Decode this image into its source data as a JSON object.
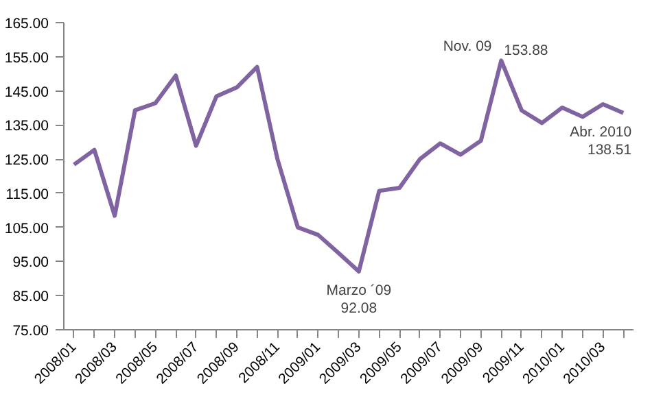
{
  "chart_data": {
    "type": "line",
    "categories": [
      "2008/01",
      null,
      "2008/03",
      null,
      "2008/05",
      null,
      "2008/07",
      null,
      "2008/09",
      null,
      "2008/11",
      null,
      "2009/01",
      null,
      "2009/03",
      null,
      "2009/05",
      null,
      "2009/07",
      null,
      "2009/09",
      null,
      "2009/11",
      null,
      "2010/01",
      null,
      "2010/03",
      null
    ],
    "series": [
      {
        "color": "#8064a2",
        "values": [
          123.4,
          127.7,
          108.4,
          139.3,
          141.4,
          149.5,
          128.9,
          143.4,
          146.0,
          152.0,
          125.0,
          105.0,
          102.8,
          97.5,
          92.08,
          115.7,
          116.6,
          125.0,
          129.6,
          126.3,
          130.4,
          153.88,
          139.3,
          135.6,
          140.1,
          137.4,
          141.1,
          138.51
        ],
        "value_labels": [
          null,
          null,
          null,
          null,
          null,
          null,
          null,
          null,
          null,
          null,
          null,
          null,
          null,
          null,
          "92.08",
          null,
          null,
          null,
          null,
          null,
          null,
          "153.88",
          null,
          null,
          null,
          null,
          null,
          "138.51"
        ]
      }
    ],
    "annotations": [
      "Marzo ´09",
      "Nov.  09",
      "Abr. 2010"
    ],
    "ylim": [
      75,
      165
    ],
    "yticks": [
      {
        "value": 75,
        "label": "75.00"
      },
      {
        "value": 85,
        "label": "85.00"
      },
      {
        "value": 95,
        "label": "95.00"
      },
      {
        "value": 105,
        "label": "105.00"
      },
      {
        "value": 115,
        "label": "115.00"
      },
      {
        "value": 125,
        "label": "125.00"
      },
      {
        "value": 135,
        "label": "135.00"
      },
      {
        "value": 145,
        "label": "145.00"
      },
      {
        "value": 155,
        "label": "155.00"
      },
      {
        "value": 165,
        "label": "165.00"
      }
    ],
    "grid": false,
    "marker": "none",
    "line_style": "solid"
  }
}
